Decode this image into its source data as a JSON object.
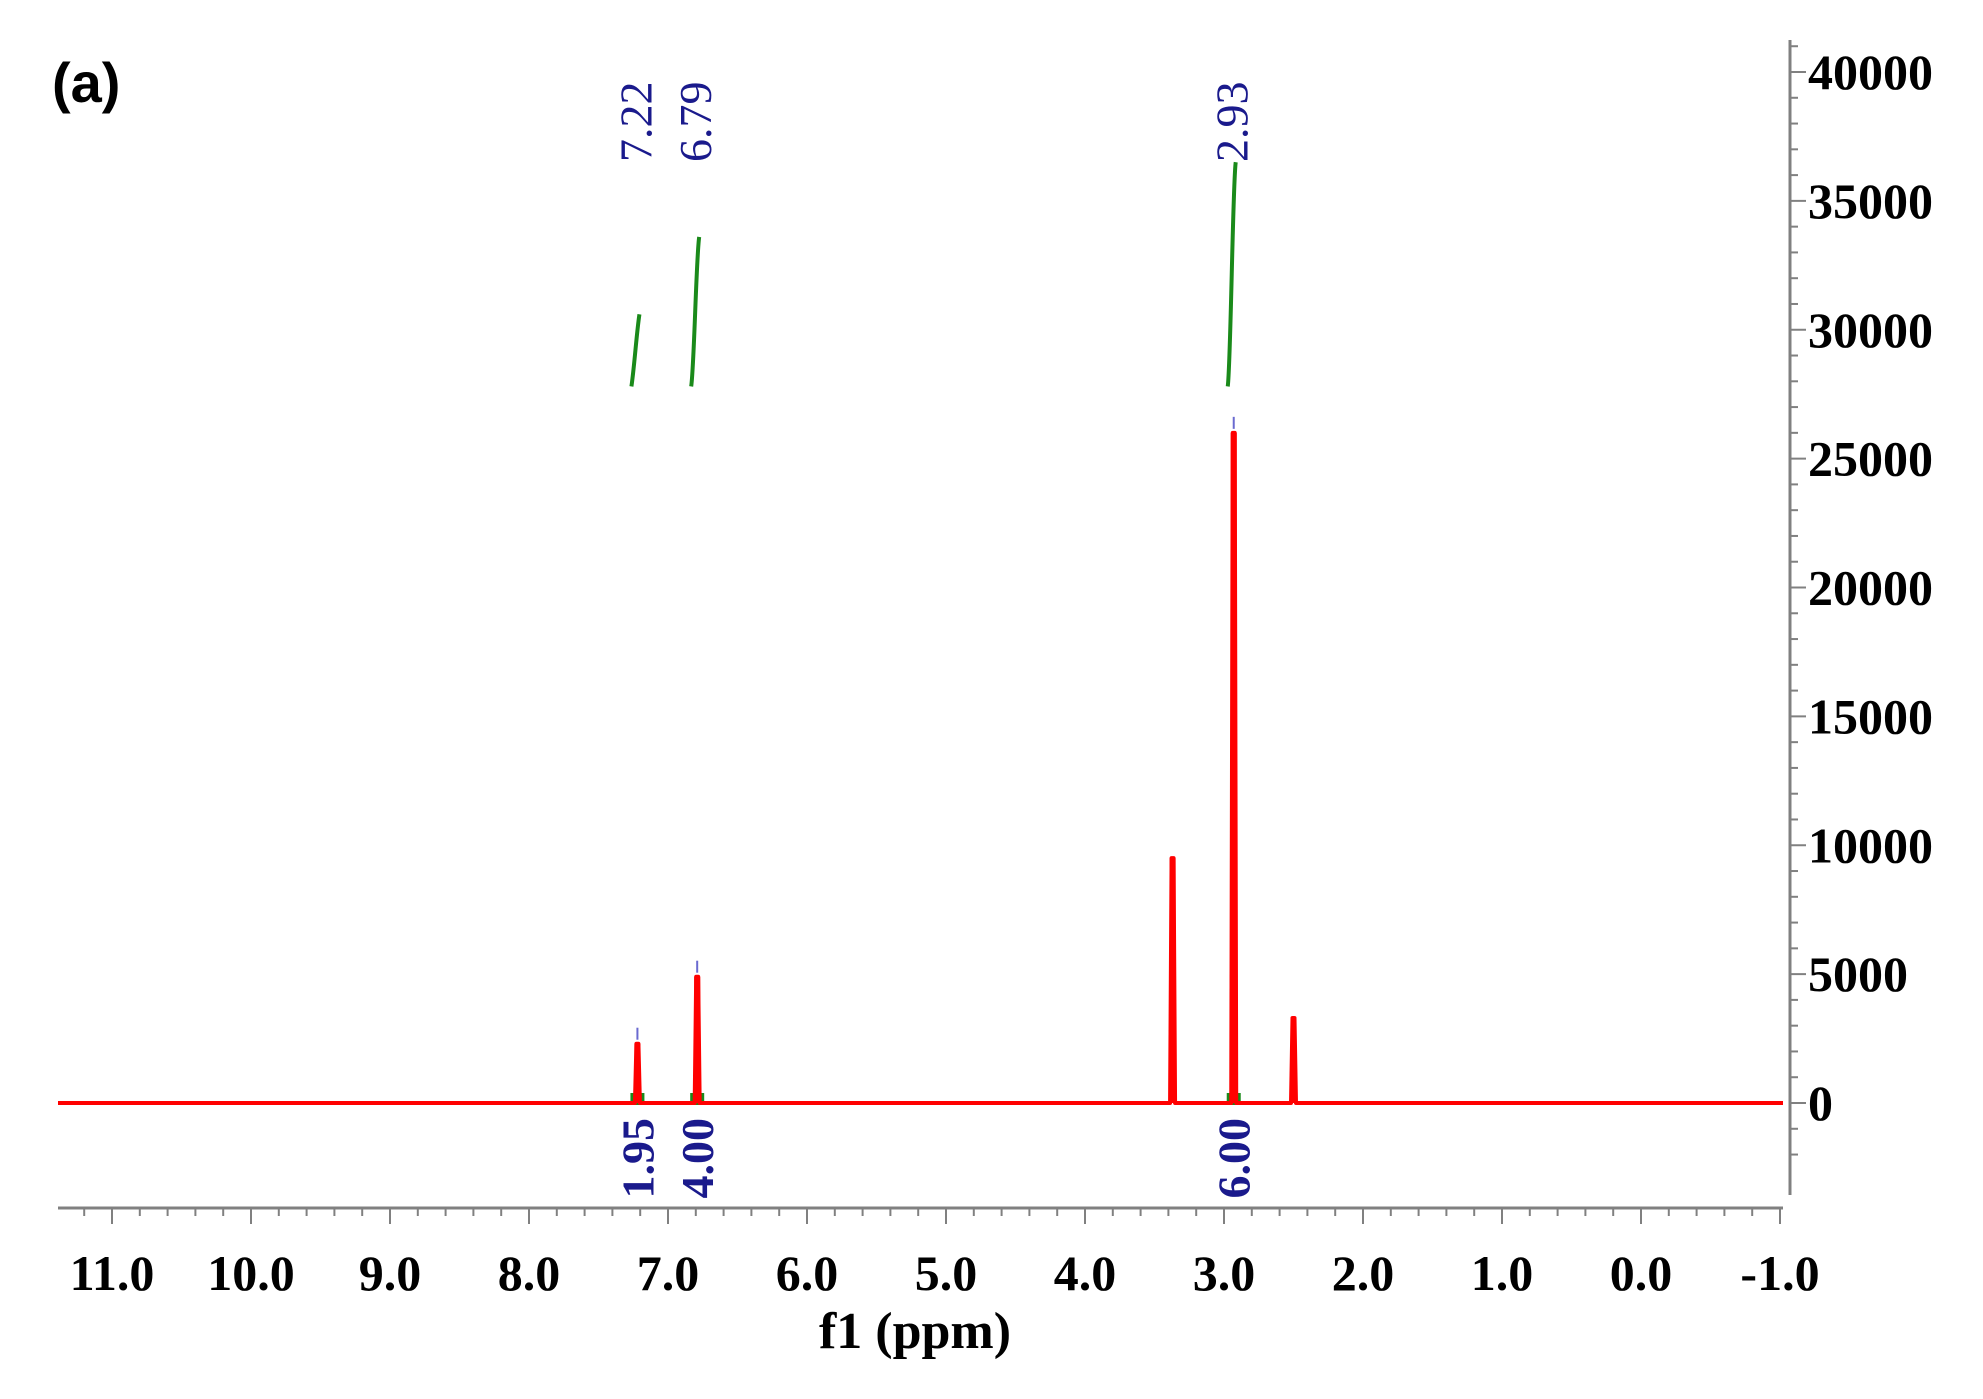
{
  "chart_data": {
    "type": "line",
    "panel_label": "(a)",
    "title": "",
    "xlabel": "f1 (ppm)",
    "ylabel": "",
    "xlim": [
      11.5,
      -1.2
    ],
    "ylim": [
      -4200,
      41000
    ],
    "x_reversed": true,
    "x_ticks": [
      "11.0",
      "10.0",
      "9.0",
      "8.0",
      "7.0",
      "6.0",
      "5.0",
      "4.0",
      "3.0",
      "2.0",
      "1.0",
      "0.0",
      "-1.0"
    ],
    "y_ticks": [
      "40000",
      "35000",
      "30000",
      "25000",
      "20000",
      "15000",
      "10000",
      "5000",
      "0"
    ],
    "y_axis_side": "right",
    "grid": false,
    "colors": {
      "spectrum": "#ff0000",
      "integral": "#1a8a1a",
      "labels": "#1a1a8c",
      "axis": "#808080"
    },
    "spectrum": {
      "name": "",
      "baseline": 0,
      "peaks": [
        {
          "shift": 7.22,
          "height": 2300
        },
        {
          "shift": 6.79,
          "height": 4900
        },
        {
          "shift": 3.37,
          "height": 9500
        },
        {
          "shift": 2.93,
          "height": 26000
        },
        {
          "shift": 2.5,
          "height": 3300
        }
      ]
    },
    "peak_labels": [
      "7.22",
      "6.79",
      "2.93"
    ],
    "integrals": [
      {
        "shift": 7.22,
        "value": "1.95",
        "curve_start": 27800,
        "curve_end": 30600
      },
      {
        "shift": 6.79,
        "value": "4.00",
        "curve_start": 27800,
        "curve_end": 33600
      },
      {
        "shift": 2.93,
        "value": "6.00",
        "curve_start": 27800,
        "curve_end": 36500
      }
    ]
  }
}
